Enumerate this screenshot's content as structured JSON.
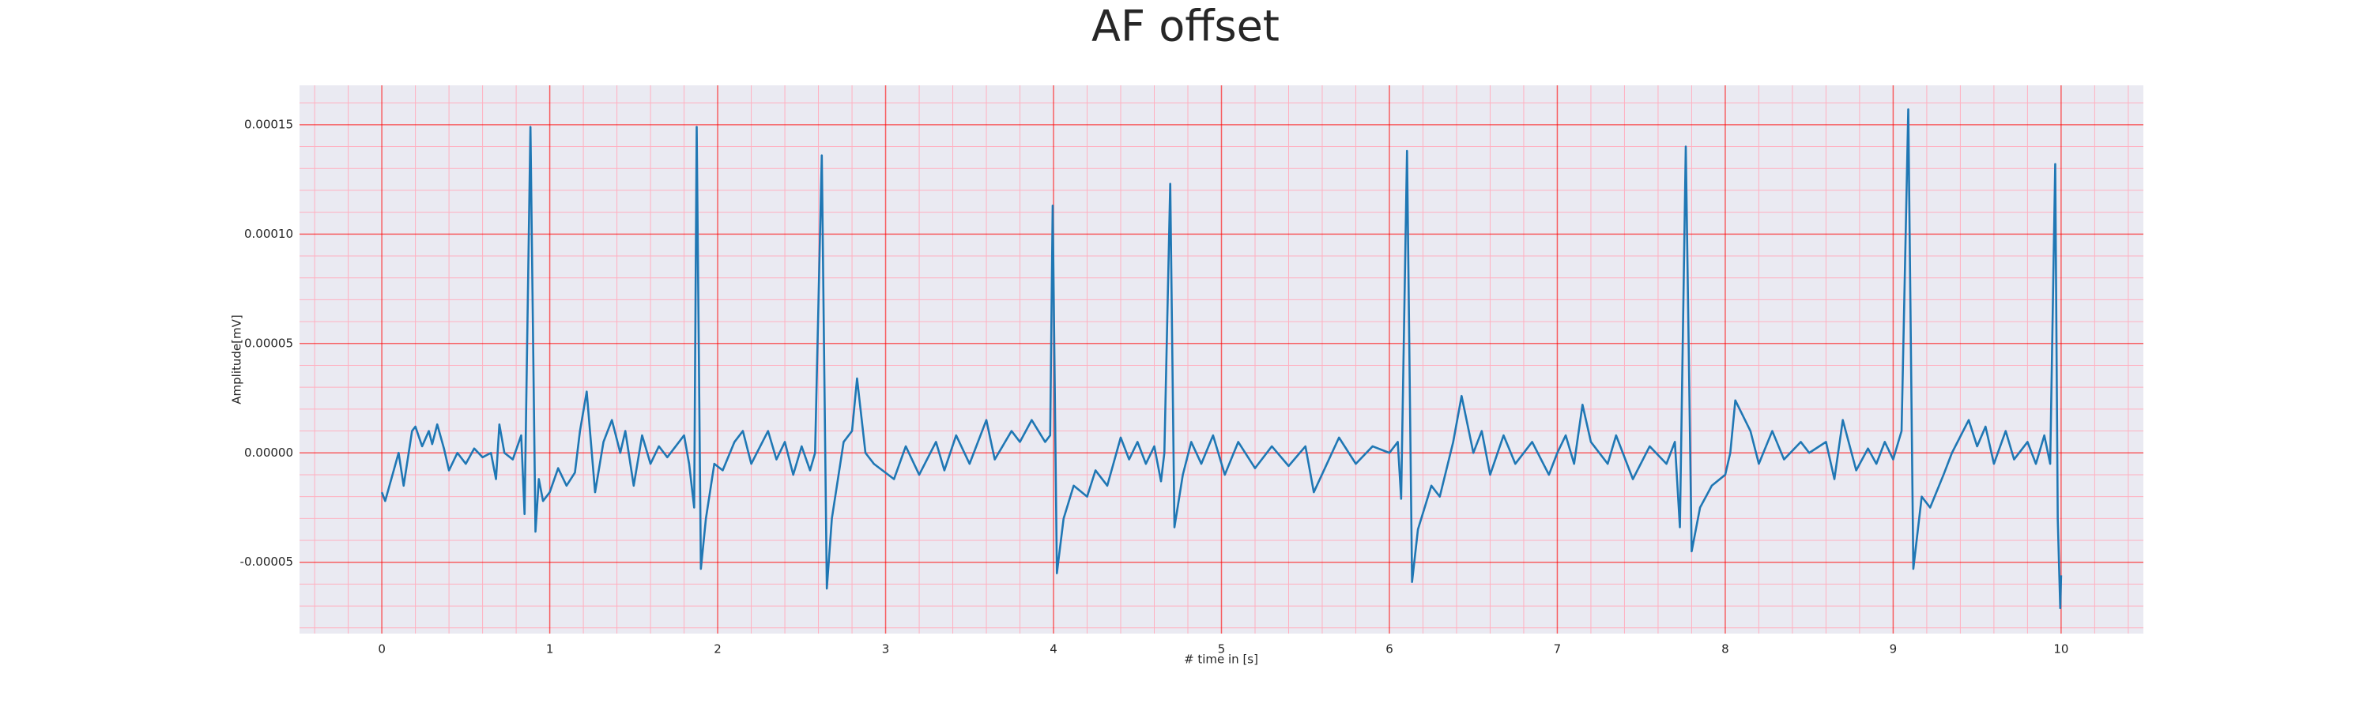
{
  "chart_data": {
    "type": "line",
    "title": "AF offset",
    "xlabel": "# time in [s]",
    "ylabel": "Amplitude[mV]",
    "color": "#1f77b4",
    "grid": true,
    "grid_color": "#ff0000",
    "minor_grid": true,
    "minor_grid_color": "#ffb0c0",
    "minor_divisions": 5,
    "background": "#eaeaf2",
    "xlim": [
      -0.49,
      10.49
    ],
    "ylim": [
      -8.26e-05,
      0.000168
    ],
    "xticks": [
      0,
      1,
      2,
      3,
      4,
      5,
      6,
      7,
      8,
      9,
      10
    ],
    "yticks": [
      -5e-05,
      {
        "value": 0,
        "label": "0.00000"
      },
      5e-05,
      {
        "value": 0.0001,
        "label": "0.00010"
      },
      0.00015
    ],
    "x": [
      0,
      0.02,
      0.1,
      0.13,
      0.18,
      0.2,
      0.24,
      0.28,
      0.3,
      0.33,
      0.37,
      0.4,
      0.45,
      0.5,
      0.55,
      0.6,
      0.65,
      0.68,
      0.7,
      0.73,
      0.78,
      0.83,
      0.85,
      0.885,
      0.915,
      0.935,
      0.96,
      1.0,
      1.05,
      1.1,
      1.15,
      1.18,
      1.22,
      1.27,
      1.32,
      1.37,
      1.42,
      1.45,
      1.5,
      1.55,
      1.6,
      1.65,
      1.7,
      1.8,
      1.83,
      1.86,
      1.875,
      1.9,
      1.93,
      1.98,
      2.03,
      2.1,
      2.15,
      2.2,
      2.3,
      2.35,
      2.4,
      2.45,
      2.5,
      2.55,
      2.58,
      2.62,
      2.65,
      2.68,
      2.75,
      2.8,
      2.83,
      2.88,
      2.93,
      3.05,
      3.12,
      3.2,
      3.3,
      3.35,
      3.42,
      3.5,
      3.6,
      3.65,
      3.75,
      3.8,
      3.87,
      3.95,
      3.98,
      3.995,
      4.02,
      4.06,
      4.12,
      4.2,
      4.25,
      4.32,
      4.4,
      4.45,
      4.5,
      4.55,
      4.6,
      4.64,
      4.66,
      4.695,
      4.72,
      4.77,
      4.82,
      4.88,
      4.95,
      5.02,
      5.1,
      5.2,
      5.3,
      5.4,
      5.5,
      5.55,
      5.7,
      5.8,
      5.9,
      6.0,
      6.05,
      6.07,
      6.105,
      6.135,
      6.17,
      6.25,
      6.3,
      6.38,
      6.43,
      6.5,
      6.55,
      6.6,
      6.68,
      6.75,
      6.85,
      6.95,
      7.0,
      7.05,
      7.1,
      7.15,
      7.2,
      7.3,
      7.35,
      7.45,
      7.55,
      7.65,
      7.7,
      7.73,
      7.765,
      7.8,
      7.85,
      7.92,
      8.0,
      8.03,
      8.06,
      8.15,
      8.2,
      8.28,
      8.35,
      8.45,
      8.5,
      8.6,
      8.65,
      8.7,
      8.78,
      8.85,
      8.9,
      8.95,
      9.0,
      9.05,
      9.09,
      9.12,
      9.17,
      9.22,
      9.3,
      9.35,
      9.45,
      9.5,
      9.55,
      9.6,
      9.67,
      9.72,
      9.8,
      9.85,
      9.9,
      9.935,
      9.965,
      9.98,
      9.995,
      10.0
    ],
    "values": [
      -1.8e-05,
      -2.2e-05,
      0.0,
      -1.5e-05,
      1e-05,
      1.2e-05,
      3e-06,
      1e-05,
      4e-06,
      1.3e-05,
      2e-06,
      -8e-06,
      0.0,
      -5e-06,
      2e-06,
      -2e-06,
      0.0,
      -1.2e-05,
      1.3e-05,
      0.0,
      -3e-06,
      8e-06,
      -2.8e-05,
      0.000149,
      -3.6e-05,
      -1.2e-05,
      -2.2e-05,
      -1.8e-05,
      -7e-06,
      -1.5e-05,
      -9e-06,
      1e-05,
      2.8e-05,
      -1.8e-05,
      5e-06,
      1.5e-05,
      0.0,
      1e-05,
      -1.5e-05,
      8e-06,
      -5e-06,
      3e-06,
      -2e-06,
      8e-06,
      -5e-06,
      -2.5e-05,
      0.000149,
      -5.3e-05,
      -3e-05,
      -5e-06,
      -8e-06,
      5e-06,
      1e-05,
      -5e-06,
      1e-05,
      -3e-06,
      5e-06,
      -1e-05,
      3e-06,
      -8e-06,
      0.0,
      0.000136,
      -6.2e-05,
      -3e-05,
      5e-06,
      1e-05,
      3.4e-05,
      0.0,
      -5e-06,
      -1.2e-05,
      3e-06,
      -1e-05,
      5e-06,
      -8e-06,
      8e-06,
      -5e-06,
      1.5e-05,
      -3e-06,
      1e-05,
      5e-06,
      1.5e-05,
      5e-06,
      8e-06,
      0.000113,
      -5.5e-05,
      -3e-05,
      -1.5e-05,
      -2e-05,
      -8e-06,
      -1.5e-05,
      7e-06,
      -3e-06,
      5e-06,
      -5e-06,
      3e-06,
      -1.3e-05,
      0.0,
      0.000123,
      -3.4e-05,
      -1e-05,
      5e-06,
      -5e-06,
      8e-06,
      -1e-05,
      5e-06,
      -7e-06,
      3e-06,
      -6e-06,
      3e-06,
      -1.8e-05,
      7e-06,
      -5e-06,
      3e-06,
      0.0,
      5e-06,
      -2.1e-05,
      0.000138,
      -5.9e-05,
      -3.5e-05,
      -1.5e-05,
      -2e-05,
      5e-06,
      2.6e-05,
      0.0,
      1e-05,
      -1e-05,
      8e-06,
      -5e-06,
      5e-06,
      -1e-05,
      0.0,
      8e-06,
      -5e-06,
      2.2e-05,
      5e-06,
      -5e-06,
      8e-06,
      -1.2e-05,
      3e-06,
      -5e-06,
      5e-06,
      -3.4e-05,
      0.00014,
      -4.5e-05,
      -2.5e-05,
      -1.5e-05,
      -1e-05,
      0.0,
      2.4e-05,
      1e-05,
      -5e-06,
      1e-05,
      -3e-06,
      5e-06,
      0.0,
      5e-06,
      -1.2e-05,
      1.5e-05,
      -8e-06,
      2e-06,
      -5e-06,
      5e-06,
      -3e-06,
      1e-05,
      0.000157,
      -5.3e-05,
      -2e-05,
      -2.5e-05,
      -1e-05,
      0.0,
      1.5e-05,
      3e-06,
      1.2e-05,
      -5e-06,
      1e-05,
      -3e-06,
      5e-06,
      -5e-06,
      8e-06,
      -5e-06,
      0.000132,
      -3e-05,
      -7.1e-05,
      -5.6e-05
    ]
  }
}
